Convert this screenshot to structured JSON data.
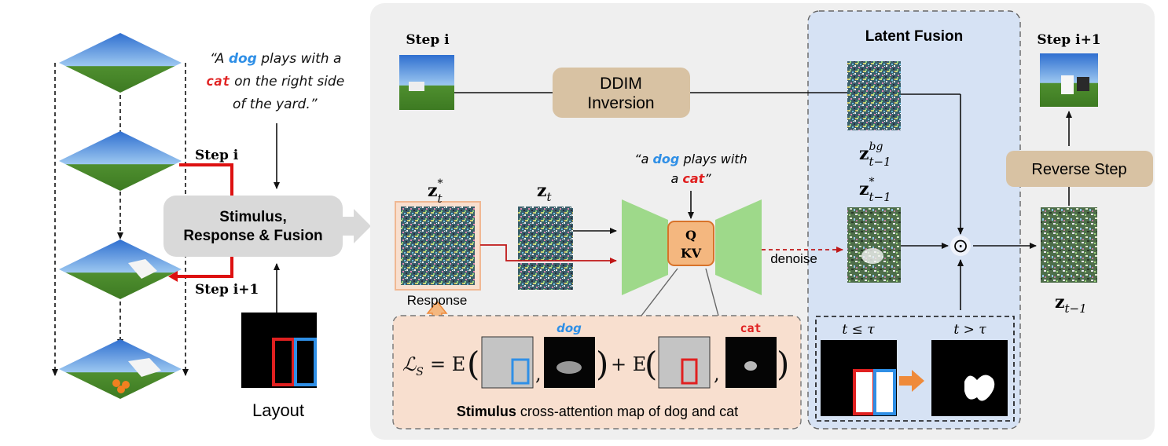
{
  "prompt": {
    "open": "“A ",
    "dog": "dog",
    "mid1": " plays with a",
    "cat": "cat",
    "mid2": " on the right side",
    "end": "of the yard.”"
  },
  "left": {
    "step_i": "Step i",
    "step_i1": "Step i+1",
    "srf_line1": "Stimulus,",
    "srf_line2": "Response & Fusion",
    "layout": "Layout"
  },
  "top": {
    "step_i": "Step i",
    "ddim_line1": "DDIM",
    "ddim_line2": "Inversion"
  },
  "latent_fusion": {
    "title": "Latent Fusion",
    "zbg_base": "z",
    "zbg_sup": "bg",
    "zbg_sub": "t−1",
    "zstar_base": "z",
    "zstar_sup": "*",
    "zstar_sub": "t−1",
    "odot": "⊙",
    "t_le": "t ≤ τ",
    "t_gt": "t > τ"
  },
  "right": {
    "step_i1": "Step i+1",
    "reverse": "Reverse Step",
    "zt1_base": "z",
    "zt1_sub": "t−1"
  },
  "unet": {
    "prompt_open": "“a ",
    "dog": "dog",
    "prompt_mid": " plays with",
    "prompt_a": "a ",
    "cat": "cat",
    "prompt_close": "”",
    "q": "Q",
    "kv": "KV",
    "denoise": "denoise"
  },
  "latents": {
    "zstar_base": "z",
    "zstar_sup": "*",
    "zstar_sub": "t",
    "zt_base": "z",
    "zt_sub": "t",
    "response": "Response"
  },
  "loss": {
    "lhs": "ℒ",
    "lhs_sub": "S",
    "eq": "= E",
    "plus": "+ E",
    "comma": ",",
    "dog": "dog",
    "cat": "cat",
    "caption_bold": "Stimulus",
    "caption_rest": " cross-attention map of dog and cat"
  },
  "colors": {
    "dog": "#2f8fe6",
    "cat": "#e02020",
    "panel": "#efefef",
    "fusion": "#d6e2f4",
    "tan": "#d8c2a3",
    "unet": "#9ed98a",
    "peach": "#f8dfcf",
    "attn": "#f4b77f",
    "orange": "#ef8a3a",
    "gray_box": "#d9d9d9"
  }
}
